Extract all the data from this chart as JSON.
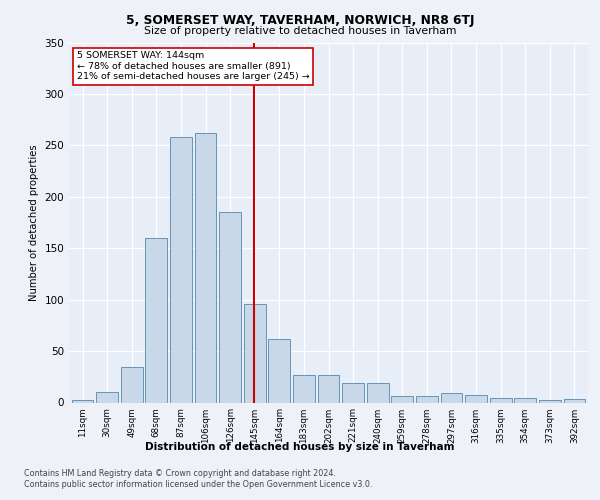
{
  "title1": "5, SOMERSET WAY, TAVERHAM, NORWICH, NR8 6TJ",
  "title2": "Size of property relative to detached houses in Taverham",
  "xlabel": "Distribution of detached houses by size in Taverham",
  "ylabel": "Number of detached properties",
  "categories": [
    "11sqm",
    "30sqm",
    "49sqm",
    "68sqm",
    "87sqm",
    "106sqm",
    "126sqm",
    "145sqm",
    "164sqm",
    "183sqm",
    "202sqm",
    "221sqm",
    "240sqm",
    "259sqm",
    "278sqm",
    "297sqm",
    "316sqm",
    "335sqm",
    "354sqm",
    "373sqm",
    "392sqm"
  ],
  "values": [
    2,
    10,
    35,
    160,
    258,
    262,
    185,
    96,
    62,
    27,
    27,
    19,
    19,
    6,
    6,
    9,
    7,
    4,
    4,
    2,
    3
  ],
  "bar_color": "#c8d8e8",
  "bar_edge_color": "#5588aa",
  "vline_color": "#cc0000",
  "annotation_box_color": "#ffffff",
  "annotation_box_edge": "#cc0000",
  "marker_label": "5 SOMERSET WAY: 144sqm",
  "annotation_line1": "← 78% of detached houses are smaller (891)",
  "annotation_line2": "21% of semi-detached houses are larger (245) →",
  "footer1": "Contains HM Land Registry data © Crown copyright and database right 2024.",
  "footer2": "Contains public sector information licensed under the Open Government Licence v3.0.",
  "bg_color": "#eef2f8",
  "plot_bg_color": "#e8eef8",
  "ylim": [
    0,
    350
  ],
  "vline_index": 6.97
}
